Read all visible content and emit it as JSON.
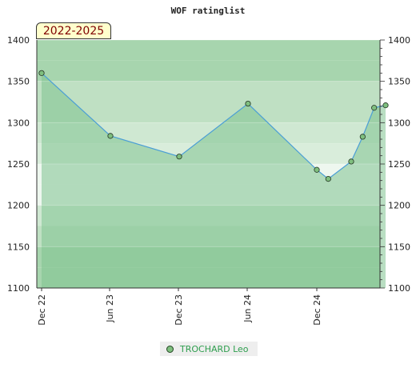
{
  "chart_data": {
    "type": "line",
    "title": "WOF ratinglist",
    "period": "2022-2025",
    "x_ticks": [
      "Dec 22",
      "Jun 23",
      "Dec 23",
      "Jun 24",
      "Dec 24"
    ],
    "ylim": [
      1100,
      1400
    ],
    "y_ticks": [
      1100,
      1150,
      1200,
      1250,
      1300,
      1350,
      1400
    ],
    "series": [
      {
        "name": "TROCHARD Leo",
        "color": "#4a9ed6",
        "x": [
          "2022-12",
          "2023-06",
          "2023-12",
          "2024-06",
          "2024-12",
          "2025-01",
          "2025-03",
          "2025-04",
          "2025-05",
          "2025-06"
        ],
        "values": [
          1360,
          1284,
          1259,
          1323,
          1243,
          1232,
          1253,
          1283,
          1318,
          1321
        ]
      }
    ],
    "grid": true,
    "legend_position": "bottom-center"
  }
}
